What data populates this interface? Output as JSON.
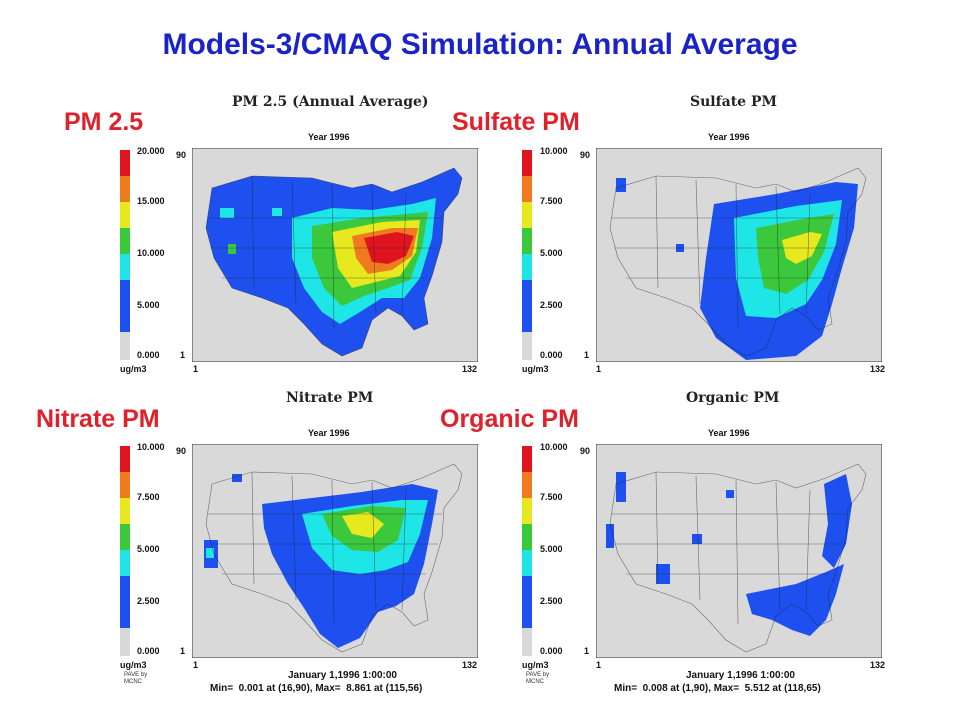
{
  "slide": {
    "title": "Models-3/CMAQ Simulation:  Annual Average"
  },
  "panels": [
    {
      "id": "pm25",
      "label": "PM 2.5",
      "map_title": "PM 2.5 (Annual Average)",
      "year": "Year 1996",
      "units": "ug/m3",
      "legend": [
        "20.000",
        "15.000",
        "10.000",
        "5.000",
        "0.000"
      ],
      "axis": {
        "y_top": "90",
        "y_bottom": "1",
        "x_left": "1",
        "x_right": "132"
      },
      "footer1": "",
      "footer2": "",
      "credit": ""
    },
    {
      "id": "sulfate",
      "label": "Sulfate PM",
      "map_title": "Sulfate PM",
      "year": "Year 1996",
      "units": "ug/m3",
      "legend": [
        "10.000",
        "7.500",
        "5.000",
        "2.500",
        "0.000"
      ],
      "axis": {
        "y_top": "90",
        "y_bottom": "1",
        "x_left": "1",
        "x_right": "132"
      },
      "footer1": "",
      "footer2": "",
      "credit": ""
    },
    {
      "id": "nitrate",
      "label": "Nitrate PM",
      "map_title": "Nitrate PM",
      "year": "Year 1996",
      "units": "ug/m3",
      "legend": [
        "10.000",
        "7.500",
        "5.000",
        "2.500",
        "0.000"
      ],
      "axis": {
        "y_top": "90",
        "y_bottom": "1",
        "x_left": "1",
        "x_right": "132"
      },
      "footer1": "January 1,1996 1:00:00",
      "footer2": "Min=  0.001 at (16,90), Max=  8.861 at (115,56)",
      "credit": "PAVE by MCNC"
    },
    {
      "id": "organic",
      "label": "Organic PM",
      "map_title": "Organic PM",
      "year": "Year 1996",
      "units": "ug/m3",
      "legend": [
        "10.000",
        "7.500",
        "5.000",
        "2.500",
        "0.000"
      ],
      "axis": {
        "y_top": "90",
        "y_bottom": "1",
        "x_left": "1",
        "x_right": "132"
      },
      "footer1": "January 1,1996 1:00:00",
      "footer2": "Min=  0.008 at (1,90), Max=  5.512 at (118,65)",
      "credit": "PAVE by MCNC"
    }
  ],
  "colors": {
    "title_blue": "#1a22c8",
    "label_red": "#e0202a",
    "scale": [
      "#e0141e",
      "#f07a1e",
      "#e8e81e",
      "#3cc83c",
      "#1ee6e6",
      "#1e50f0",
      "#d8d8d8"
    ],
    "map_bg": "#d9d9d9"
  }
}
